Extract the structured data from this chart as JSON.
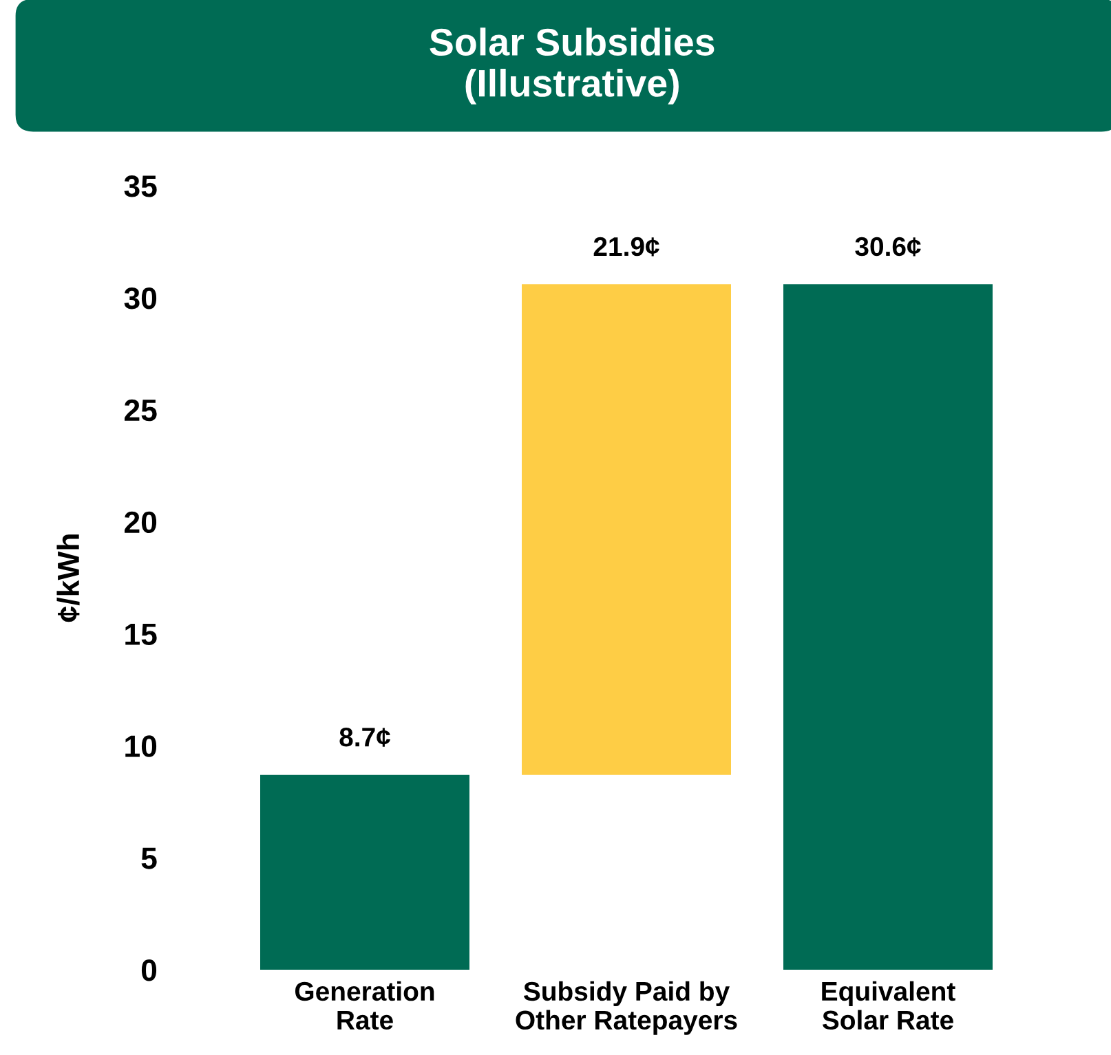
{
  "chart_data": {
    "type": "bar",
    "title": "Solar Subsidies\n(Illustrative)",
    "ylabel": "¢/kWh",
    "categories": [
      "Generation\nRate",
      "Subsidy Paid by\nOther Ratepayers",
      "Equivalent\nSolar Rate"
    ],
    "values": [
      8.7,
      21.9,
      30.6
    ],
    "base": [
      0,
      8.7,
      0
    ],
    "colors": [
      "#006b54",
      "#fecd45",
      "#006b54"
    ],
    "value_labels": [
      "8.7¢",
      "21.9¢",
      "30.6¢"
    ],
    "ylim": [
      0,
      35
    ],
    "yticks": [
      0,
      5,
      10,
      15,
      20,
      25,
      30,
      35
    ],
    "grid": false
  }
}
